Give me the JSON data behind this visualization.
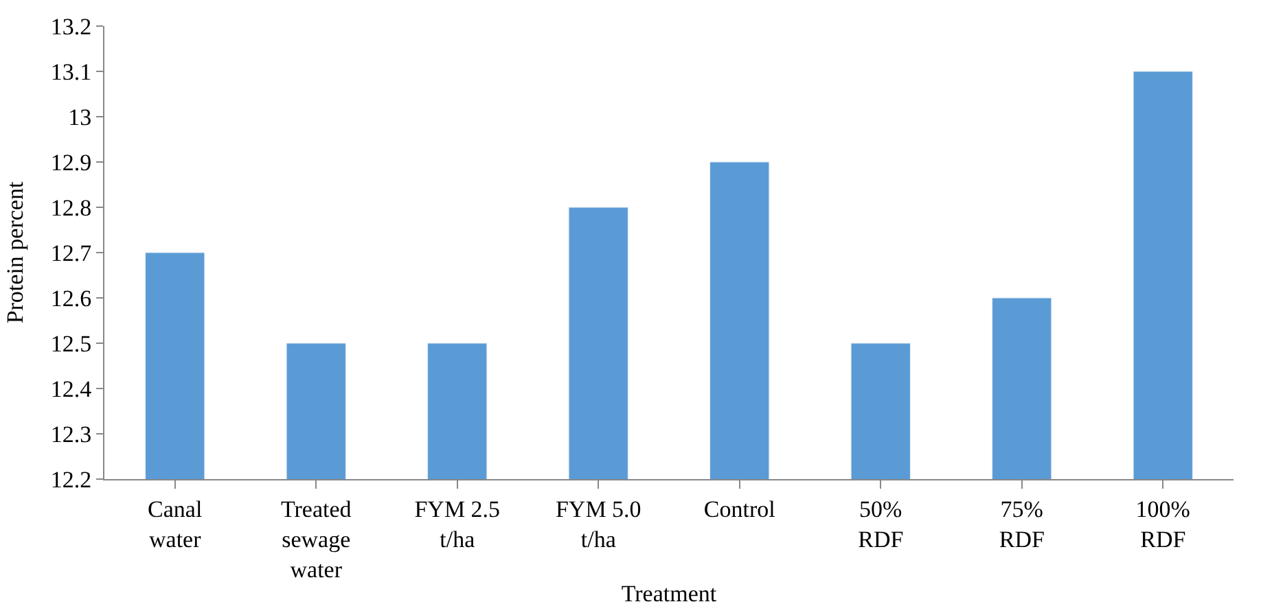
{
  "chart_data": {
    "type": "bar",
    "xlabel": "Treatment",
    "ylabel": "Protein percent",
    "categories": [
      "Canal\nwater",
      "Treated\nsewage\nwater",
      "FYM 2.5\nt/ha",
      "FYM 5.0\nt/ha",
      "Control",
      "50%\nRDF",
      "75%\nRDF",
      "100%\nRDF"
    ],
    "values": [
      12.7,
      12.5,
      12.5,
      12.8,
      12.9,
      12.5,
      12.6,
      13.1
    ],
    "color": "#5b9bd5",
    "ylim": [
      12.2,
      13.2
    ],
    "yticks": [
      12.2,
      12.3,
      12.4,
      12.5,
      12.6,
      12.7,
      12.8,
      12.9,
      13,
      13.1,
      13.2
    ]
  }
}
